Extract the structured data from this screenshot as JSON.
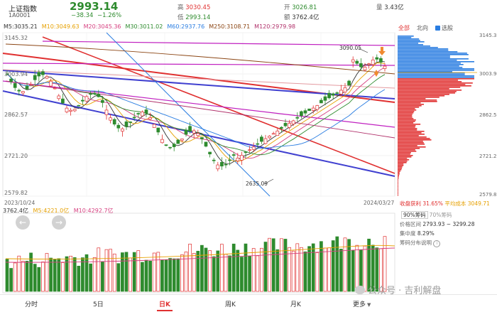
{
  "header": {
    "name": "上证指数",
    "code": "1A0001",
    "price": "2993.14",
    "change": "−38.34",
    "change_pct": "−1.26%",
    "high_label": "高",
    "high": "3030.45",
    "low_label": "低",
    "low": "2993.14",
    "open_label": "开",
    "open": "3026.81",
    "amount_label": "额",
    "amount": "3762.4亿",
    "volume_label": "量",
    "volume": "3.43亿"
  },
  "ma": {
    "m5": "M5:3035.21",
    "m10": "M10:3049.63",
    "m20": "M20:3045.36",
    "m30": "M30:3011.02",
    "m60": "M60:2937.76",
    "m250": "M250:3108.71",
    "m120": "M120:2979.98"
  },
  "ma_colors": {
    "m5": "#333333",
    "m10": "#e6a000",
    "m20": "#d64080",
    "m30": "#2e8b2e",
    "m60": "#2a7de1",
    "m250": "#8b4513",
    "m120": "#b0306a"
  },
  "price_axis": {
    "left": [
      "3145.32",
      "3003.94",
      "2862.57",
      "2721.20",
      "2579.82"
    ],
    "right": [
      "3145.32",
      "3003.94",
      "2862.57",
      "2721.20",
      "2579.82"
    ]
  },
  "annotations": {
    "high_mark": "3090.05",
    "low_mark": "2635.09"
  },
  "dates": {
    "start": "2023/10/24",
    "end": "2024/03/27"
  },
  "chips_tabs": {
    "all": "全部",
    "north": "北向",
    "select": "选股"
  },
  "volume_labels": {
    "vol": "3762.4亿",
    "m5": "M5:4221.0亿",
    "m10": "M10:4292.7亿"
  },
  "panel_info": {
    "profit_label": "收盘获利",
    "profit": "31.65%",
    "avg_cost_label": "平均成本",
    "avg_cost": "3049.71",
    "ratio_tab_90": "90%筹码",
    "ratio_tab_70": "70%筹码",
    "price_range_label": "价格区间",
    "price_range": "2793.93 ~ 3299.28",
    "concentration_label": "集中度",
    "concentration": "8.29%",
    "help": "筹码分布说明"
  },
  "watermark": "公众号 · 吉利解盘",
  "nav": {
    "fenshi": "分时",
    "wuri": "5日",
    "rik": "日K",
    "zhouk": "周K",
    "yuek": "月K",
    "more": "更多"
  },
  "colors": {
    "up": "#e03030",
    "down": "#2e8b2e",
    "accent": "#2a7de1"
  }
}
